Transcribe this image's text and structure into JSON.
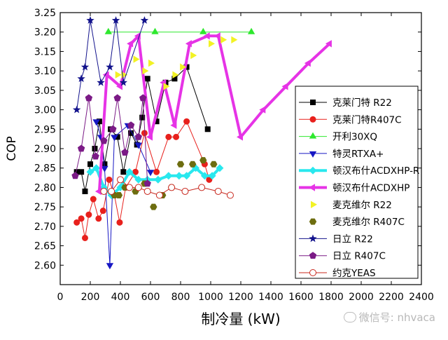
{
  "chart_data": {
    "type": "scatter",
    "title": "",
    "xlabel": "制冷量 (kW)",
    "ylabel": "COP",
    "xlim": [
      0,
      2400
    ],
    "ylim": [
      2.55,
      3.25
    ],
    "xticks": [
      0,
      200,
      400,
      600,
      800,
      1000,
      1200,
      1400,
      1600,
      1800,
      2000,
      2200,
      2400
    ],
    "yticks": [
      2.6,
      2.65,
      2.7,
      2.75,
      2.8,
      2.85,
      2.9,
      2.95,
      3.0,
      3.05,
      3.1,
      3.15,
      3.2,
      3.25
    ],
    "legend_position": "right",
    "series": [
      {
        "name": "克莱门特 R22",
        "color": "#000000",
        "marker": "square",
        "line": "thin",
        "x": [
          110,
          140,
          165,
          200,
          230,
          260,
          295,
          335,
          380,
          420,
          470,
          510,
          545,
          580,
          640,
          700,
          760,
          840,
          980
        ],
        "y": [
          2.84,
          2.84,
          2.79,
          2.86,
          2.9,
          2.97,
          2.86,
          2.95,
          2.93,
          2.84,
          2.94,
          2.91,
          2.98,
          3.08,
          2.97,
          3.07,
          3.08,
          3.11,
          2.95
        ]
      },
      {
        "name": "克莱门特R407C",
        "color": "#e8201c",
        "marker": "circle",
        "line": "thin",
        "x": [
          110,
          140,
          165,
          190,
          220,
          255,
          285,
          325,
          360,
          395,
          435,
          500,
          560,
          640,
          720,
          770,
          840,
          960,
          990
        ],
        "y": [
          2.71,
          2.72,
          2.67,
          2.73,
          2.77,
          2.72,
          2.74,
          2.82,
          2.78,
          2.71,
          2.8,
          2.84,
          2.94,
          2.84,
          2.93,
          2.93,
          2.97,
          2.86,
          2.82
        ]
      },
      {
        "name": "开利30XQ",
        "color": "#2ee82e",
        "marker": "triangle-up",
        "line": "thin",
        "x": [
          320,
          630,
          950,
          1270
        ],
        "y": [
          3.2,
          3.2,
          3.2,
          3.2
        ]
      },
      {
        "name": "特灵RTXA+",
        "color": "#1717c4",
        "marker": "triangle-down",
        "line": "thin",
        "x": [
          240,
          270,
          295,
          330,
          360,
          450,
          520,
          600
        ],
        "y": [
          2.97,
          2.93,
          2.85,
          2.6,
          2.93,
          2.96,
          2.91,
          2.84
        ]
      },
      {
        "name": "顿汉布什ACDXHP-R",
        "color": "#29e8ee",
        "marker": "diamond",
        "line": "thick",
        "x": [
          200,
          240,
          290,
          340,
          400,
          460,
          520,
          580,
          650,
          720,
          790,
          840,
          900,
          960,
          1010,
          1060
        ],
        "y": [
          2.84,
          2.85,
          2.8,
          2.78,
          2.8,
          2.84,
          2.82,
          2.82,
          2.82,
          2.83,
          2.83,
          2.83,
          2.85,
          2.83,
          2.83,
          2.85
        ]
      },
      {
        "name": "顿汉布什ACDXHP",
        "color": "#e633e6",
        "marker": "triangle-left",
        "line": "thick",
        "x": [
          260,
          310,
          400,
          470,
          520,
          600,
          690,
          760,
          860,
          980,
          1050,
          1200,
          1350,
          1500,
          1650,
          1790
        ],
        "y": [
          2.79,
          3.09,
          3.06,
          3.17,
          3.19,
          2.93,
          3.07,
          2.96,
          3.17,
          3.19,
          3.19,
          2.93,
          3.0,
          3.06,
          3.12,
          3.17
        ]
      },
      {
        "name": "麦克维尔 R22",
        "color": "#f2f224",
        "marker": "triangle-right",
        "line": "none",
        "x": [
          380,
          420,
          500,
          560,
          600,
          700,
          760,
          810,
          880,
          1000,
          1080,
          1150
        ],
        "y": [
          3.09,
          3.09,
          3.13,
          3.1,
          3.12,
          3.06,
          3.09,
          3.11,
          3.14,
          3.17,
          3.18,
          3.18
        ]
      },
      {
        "name": "麦克维尔 R407C",
        "color": "#6d6d0f",
        "marker": "hexagon",
        "line": "none",
        "x": [
          360,
          390,
          430,
          500,
          560,
          620,
          680,
          740,
          800,
          880,
          950,
          1020
        ],
        "y": [
          2.78,
          2.78,
          2.8,
          2.79,
          2.81,
          2.75,
          2.78,
          2.8,
          2.86,
          2.86,
          2.87,
          2.86
        ]
      },
      {
        "name": "日立 R22",
        "color": "#12128c",
        "marker": "star",
        "line": "thin",
        "x": [
          110,
          140,
          165,
          200,
          270,
          330,
          370,
          420,
          560
        ],
        "y": [
          3.0,
          3.08,
          3.11,
          3.23,
          3.07,
          3.11,
          3.23,
          3.07,
          3.23
        ]
      },
      {
        "name": "日立 R407C",
        "color": "#7b1a86",
        "marker": "pentagon",
        "line": "thin",
        "x": [
          100,
          140,
          190,
          235,
          290,
          350,
          380,
          430,
          470,
          520,
          550,
          580
        ],
        "y": [
          2.83,
          2.9,
          3.03,
          2.88,
          2.92,
          2.95,
          3.03,
          2.89,
          2.96,
          2.93,
          3.03,
          2.81
        ]
      },
      {
        "name": "约克YEAS",
        "color": "#c8281e",
        "marker": "circle-open",
        "line": "thin",
        "x": [
          290,
          340,
          400,
          460,
          520,
          580,
          660,
          740,
          830,
          940,
          1050,
          1130
        ],
        "y": [
          2.79,
          2.79,
          2.82,
          2.8,
          2.8,
          2.79,
          2.78,
          2.8,
          2.79,
          2.8,
          2.79,
          2.78
        ]
      }
    ]
  },
  "watermark": "微信号: nhvaca"
}
